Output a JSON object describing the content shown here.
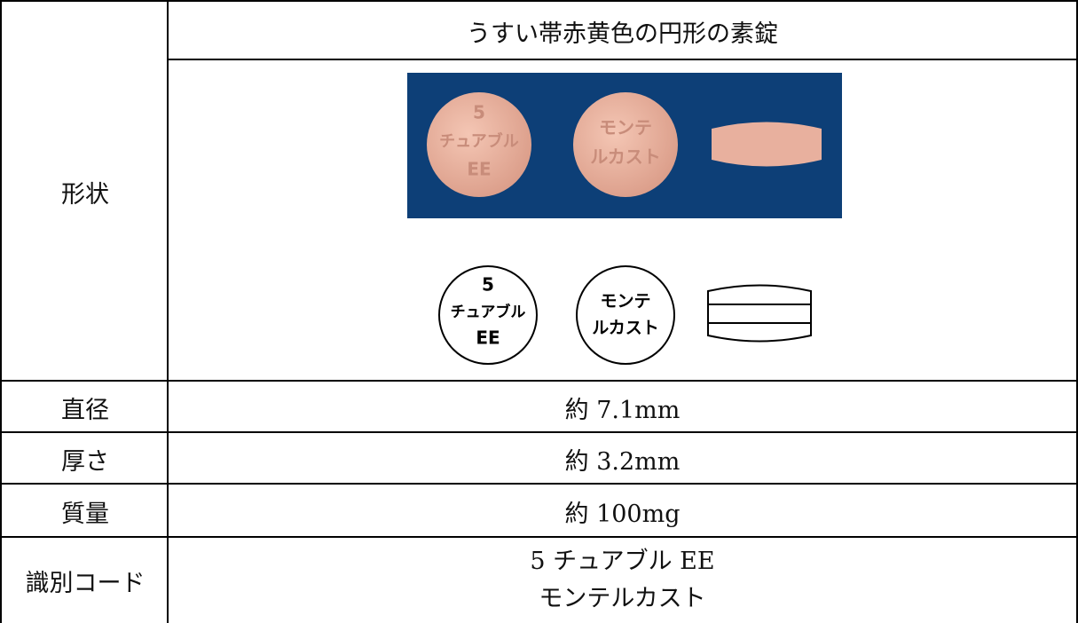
{
  "table": {
    "shape_label": "形状",
    "shape_text": "うすい帯赤黄色の円形の素錠",
    "imprint": {
      "front": [
        "5",
        "チュアブル",
        "EE"
      ],
      "back": [
        "モンテ",
        "ルカスト"
      ]
    },
    "rows": [
      [
        "直径",
        "約 7.1mm"
      ],
      [
        "厚さ",
        "約 3.2mm"
      ],
      [
        "質量",
        "約 100mg"
      ],
      [
        "識別コード",
        "5 チュアブル EE",
        "モンテルカスト"
      ]
    ]
  }
}
